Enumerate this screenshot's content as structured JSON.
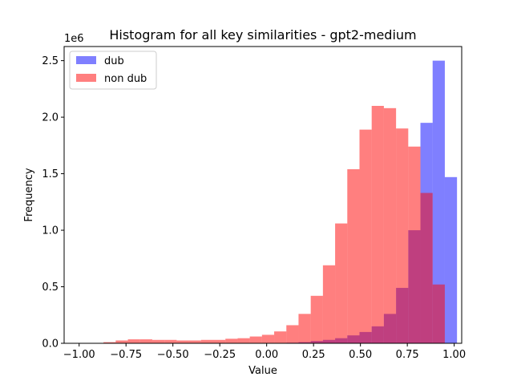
{
  "chart_data": {
    "type": "bar",
    "title": "Histogram for all key similarities - gpt2-medium",
    "xlabel": "Value",
    "ylabel": "Frequency",
    "y_offset_label": "1e6",
    "xlim": [
      -1.08,
      1.04
    ],
    "ylim": [
      0,
      2.625
    ],
    "y_multiplier": 1000000,
    "x_ticks": [
      -1.0,
      -0.75,
      -0.5,
      -0.25,
      0.0,
      0.25,
      0.5,
      0.75,
      1.0
    ],
    "x_tick_labels": [
      "−1.00",
      "−0.75",
      "−0.50",
      "−0.25",
      "0.00",
      "0.25",
      "0.50",
      "0.75",
      "1.00"
    ],
    "y_ticks": [
      0.0,
      0.5,
      1.0,
      1.5,
      2.0,
      2.5
    ],
    "y_tick_labels": [
      "0.0",
      "0.5",
      "1.0",
      "1.5",
      "2.0",
      "2.5"
    ],
    "legend_position": "upper-left",
    "bins": [
      -1.0,
      -0.935,
      -0.87,
      -0.805,
      -0.74,
      -0.675,
      -0.61,
      -0.545,
      -0.48,
      -0.415,
      -0.35,
      -0.285,
      -0.22,
      -0.155,
      -0.09,
      -0.025,
      0.04,
      0.105,
      0.17,
      0.235,
      0.3,
      0.365,
      0.43,
      0.495,
      0.56,
      0.625,
      0.69,
      0.755,
      0.82,
      0.885,
      0.95
    ],
    "series": [
      {
        "name": "dub",
        "color": "#0000ff",
        "alpha": 0.5,
        "values": [
          0,
          0,
          0,
          0,
          0,
          0,
          0,
          0,
          0,
          0,
          0,
          0,
          0,
          0,
          0,
          0,
          0,
          0.005,
          0.01,
          0.02,
          0.03,
          0.045,
          0.07,
          0.1,
          0.15,
          0.26,
          0.49,
          1.0,
          1.95,
          2.5,
          1.47
        ]
      },
      {
        "name": "non dub",
        "color": "#ff0000",
        "alpha": 0.5,
        "values": [
          0,
          0,
          0.01,
          0.025,
          0.035,
          0.035,
          0.03,
          0.03,
          0.025,
          0.025,
          0.03,
          0.03,
          0.04,
          0.045,
          0.06,
          0.075,
          0.105,
          0.16,
          0.26,
          0.42,
          0.69,
          1.06,
          1.54,
          1.89,
          2.1,
          2.08,
          1.9,
          1.74,
          1.33,
          0.52,
          0
        ]
      }
    ]
  }
}
